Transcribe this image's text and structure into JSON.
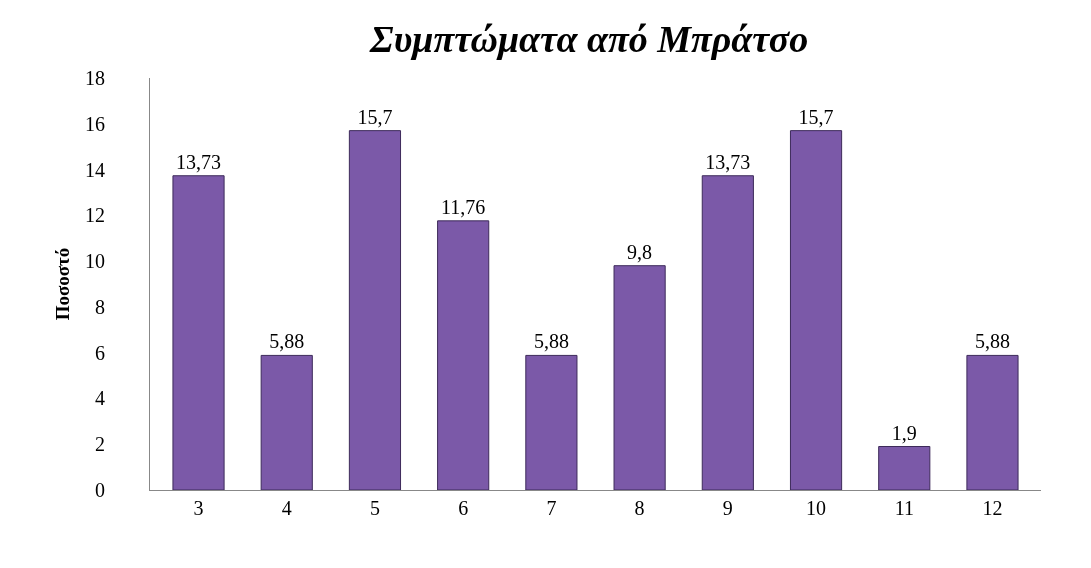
{
  "chart_data": {
    "type": "bar",
    "title": "Συμπτώματα από Μπράτσο",
    "ylabel": "Ποσοστό",
    "categories": [
      "3",
      "4",
      "5",
      "6",
      "7",
      "8",
      "9",
      "10",
      "11",
      "12"
    ],
    "values": [
      13.73,
      5.88,
      15.7,
      11.76,
      5.88,
      9.8,
      13.73,
      15.7,
      1.9,
      5.88
    ],
    "value_labels": [
      "13,73",
      "5,88",
      "15,7",
      "11,76",
      "5,88",
      "9,8",
      "13,73",
      "15,7",
      "1,9",
      "5,88"
    ],
    "color": "#7b59a8",
    "ylim": [
      0,
      18
    ],
    "yticks": [
      0,
      2,
      4,
      6,
      8,
      10,
      12,
      14,
      16,
      18
    ]
  }
}
